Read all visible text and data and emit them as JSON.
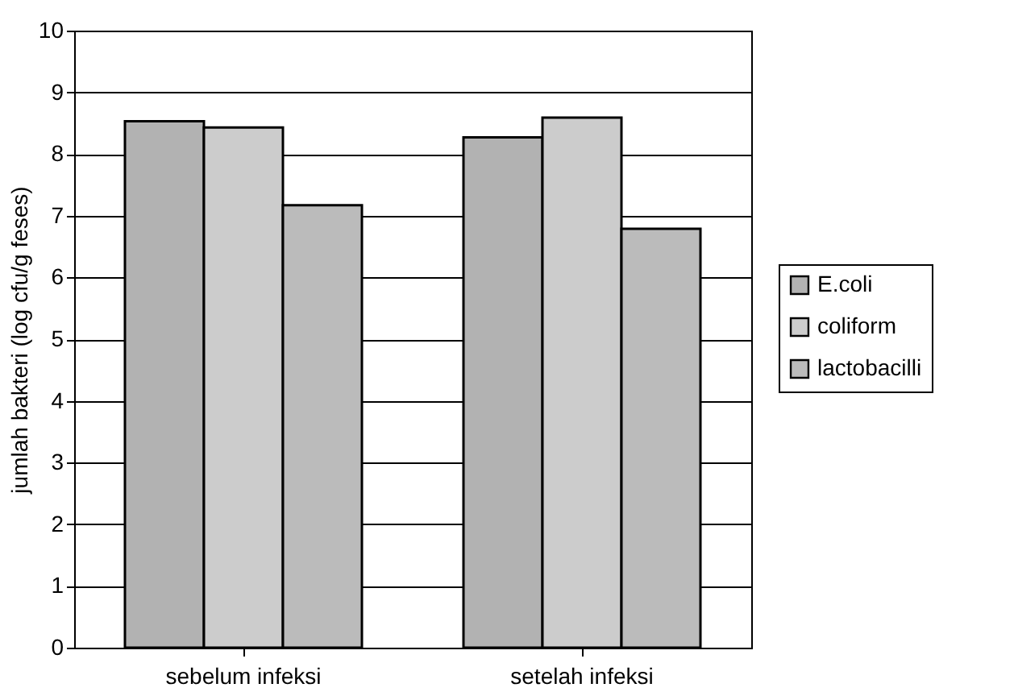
{
  "chart_data": {
    "type": "bar",
    "ylabel": "jumlah bakteri (log cfu/g feses)",
    "categories": [
      "sebelum infeksi",
      "setelah infeksi"
    ],
    "series": [
      {
        "name": "E.coli",
        "color": "#b2b2b2",
        "values": [
          8.53,
          8.27
        ]
      },
      {
        "name": "coliform",
        "color": "#cccccc",
        "values": [
          8.43,
          8.59
        ]
      },
      {
        "name": "lactobacilli",
        "color": "#bbbbbb",
        "values": [
          7.17,
          6.79
        ]
      }
    ],
    "ylim": [
      0,
      10
    ],
    "yticks": [
      0,
      1,
      2,
      3,
      4,
      5,
      6,
      7,
      8,
      9,
      10
    ],
    "grid": "y",
    "legend": "right"
  }
}
